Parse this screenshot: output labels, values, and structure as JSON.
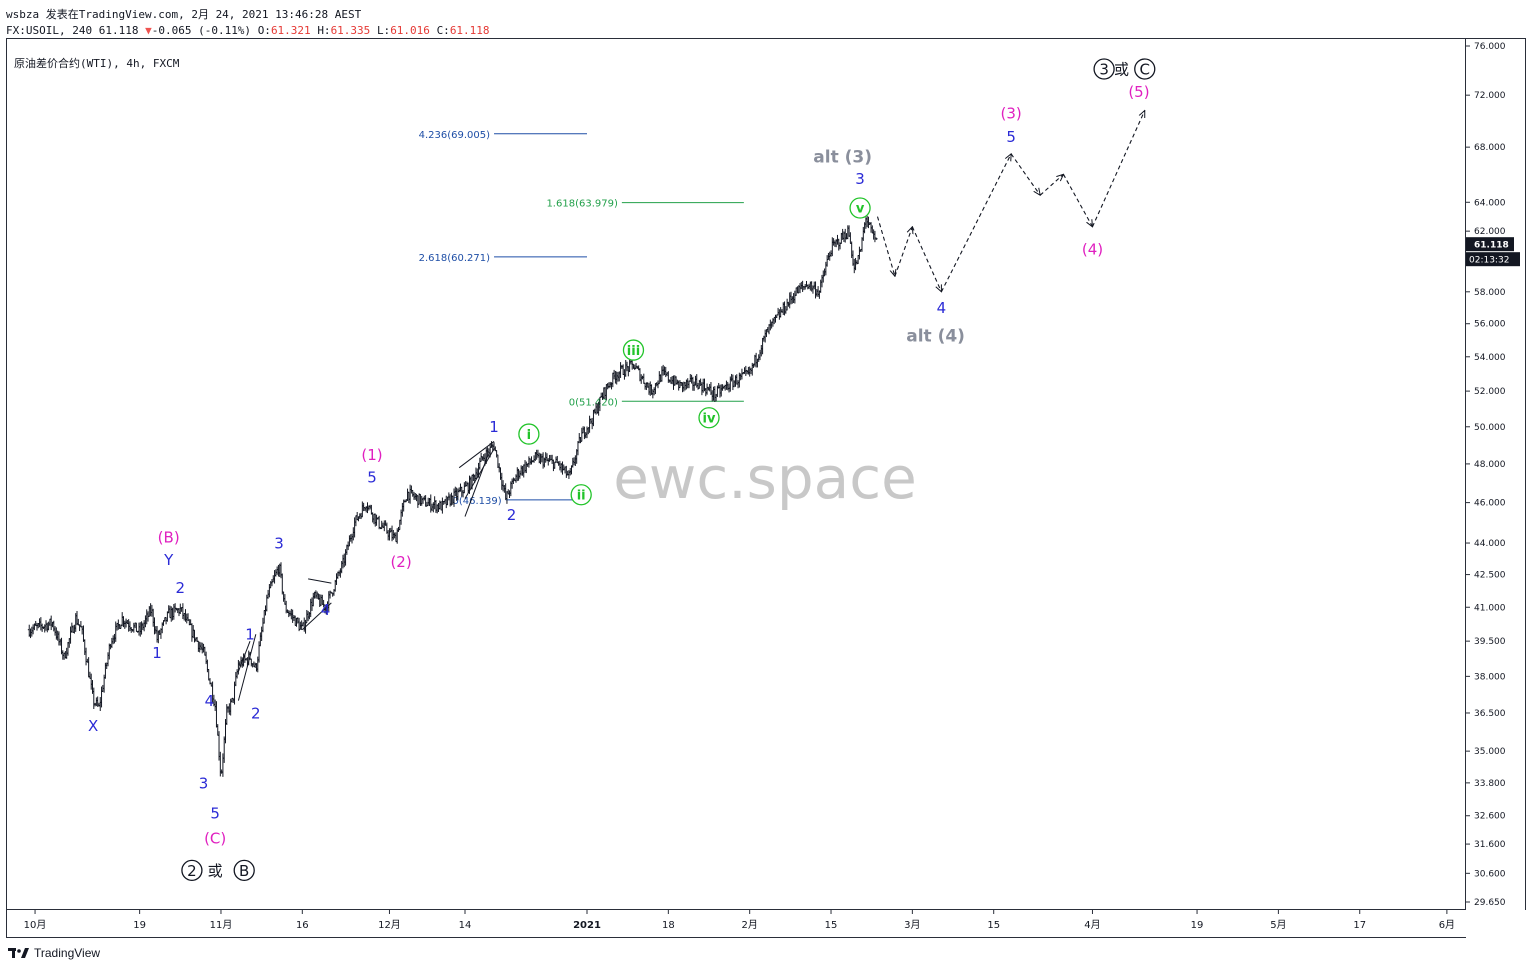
{
  "header": {
    "line1": "wsbza 发表在TradingView.com, 2月 24, 2021 13:46:28 AEST",
    "symbol": "FX:USOIL, 240",
    "last": "61.118",
    "change_arrow": "▼",
    "change": "-0.065 (-0.11%)",
    "o_label": "O:",
    "o_val": "61.321",
    "h_label": "H:",
    "h_val": "61.335",
    "l_label": "L:",
    "l_val": "61.016",
    "c_label": "C:",
    "c_val": "61.118"
  },
  "symbol_title": "原油差价合约(WTI), 4h, FXCM",
  "watermark": "ewc.space",
  "footer": {
    "brand": "TradingView"
  },
  "chart_data": {
    "type": "candlestick",
    "y_scale": "log",
    "ylim": [
      29.0,
      77.0
    ],
    "price_ticks": [
      "76.000",
      "72.000",
      "68.000",
      "64.000",
      "62.000",
      "60.000",
      "58.000",
      "56.000",
      "54.000",
      "52.000",
      "50.000",
      "48.000",
      "46.000",
      "44.000",
      "42.500",
      "41.000",
      "39.500",
      "38.000",
      "36.500",
      "35.000",
      "33.800",
      "32.600",
      "31.600",
      "30.600",
      "29.650"
    ],
    "time_ticks": [
      {
        "label": "10月",
        "date": "2020-10-01",
        "bold": false
      },
      {
        "label": "19",
        "date": "2020-10-19",
        "bold": false
      },
      {
        "label": "11月",
        "date": "2020-11-02",
        "bold": false
      },
      {
        "label": "16",
        "date": "2020-11-16",
        "bold": false
      },
      {
        "label": "12月",
        "date": "2020-12-01",
        "bold": false
      },
      {
        "label": "14",
        "date": "2020-12-14",
        "bold": false
      },
      {
        "label": "2021",
        "date": "2021-01-04",
        "bold": true
      },
      {
        "label": "18",
        "date": "2021-01-18",
        "bold": false
      },
      {
        "label": "2月",
        "date": "2021-02-01",
        "bold": false
      },
      {
        "label": "15",
        "date": "2021-02-15",
        "bold": false
      },
      {
        "label": "3月",
        "date": "2021-03-01",
        "bold": false
      },
      {
        "label": "15",
        "date": "2021-03-15",
        "bold": false
      },
      {
        "label": "4月",
        "date": "2021-04-01",
        "bold": false
      },
      {
        "label": "19",
        "date": "2021-04-19",
        "bold": false
      },
      {
        "label": "5月",
        "date": "2021-05-03",
        "bold": false
      },
      {
        "label": "17",
        "date": "2021-05-17",
        "bold": false
      },
      {
        "label": "6月",
        "date": "2021-06-01",
        "bold": false
      }
    ],
    "last_price": {
      "value": 61.118,
      "label": "61.118",
      "countdown": "02:13:32",
      "color": "#131722"
    },
    "price_path_keypoints": [
      [
        "2020-09-30",
        40.0
      ],
      [
        "2020-10-04",
        40.3
      ],
      [
        "2020-10-06",
        38.8
      ],
      [
        "2020-10-08",
        40.5
      ],
      [
        "2020-10-09",
        40.0
      ],
      [
        "2020-10-11",
        37.0
      ],
      [
        "2020-10-12",
        36.7
      ],
      [
        "2020-10-14",
        39.5
      ],
      [
        "2020-10-16",
        40.5
      ],
      [
        "2020-10-19",
        39.9
      ],
      [
        "2020-10-21",
        40.9
      ],
      [
        "2020-10-22",
        39.6
      ],
      [
        "2020-10-24",
        40.7
      ],
      [
        "2020-10-26",
        40.9
      ],
      [
        "2020-10-28",
        39.9
      ],
      [
        "2020-10-30",
        39.0
      ],
      [
        "2020-11-01",
        36.8
      ],
      [
        "2020-11-02",
        34.0
      ],
      [
        "2020-11-03",
        36.5
      ],
      [
        "2020-11-04",
        37.0
      ],
      [
        "2020-11-05",
        38.5
      ],
      [
        "2020-11-07",
        38.8
      ],
      [
        "2020-11-08",
        38.3
      ],
      [
        "2020-11-10",
        41.5
      ],
      [
        "2020-11-12",
        42.9
      ],
      [
        "2020-11-13",
        41.0
      ],
      [
        "2020-11-16",
        40.0
      ],
      [
        "2020-11-18",
        41.5
      ],
      [
        "2020-11-20",
        41.0
      ],
      [
        "2020-11-23",
        43.0
      ],
      [
        "2020-11-25",
        45.0
      ],
      [
        "2020-11-27",
        46.0
      ],
      [
        "2020-11-29",
        45.0
      ],
      [
        "2020-12-02",
        44.2
      ],
      [
        "2020-12-04",
        46.5
      ],
      [
        "2020-12-07",
        46.0
      ],
      [
        "2020-12-10",
        45.8
      ],
      [
        "2020-12-13",
        46.5
      ],
      [
        "2020-12-15",
        47.0
      ],
      [
        "2020-12-17",
        48.3
      ],
      [
        "2020-12-19",
        49.0
      ],
      [
        "2020-12-21",
        46.2
      ],
      [
        "2020-12-23",
        47.5
      ],
      [
        "2020-12-26",
        48.3
      ],
      [
        "2020-12-30",
        48.0
      ],
      [
        "2021-01-01",
        47.3
      ],
      [
        "2021-01-03",
        49.5
      ],
      [
        "2021-01-05",
        50.5
      ],
      [
        "2021-01-07",
        52.0
      ],
      [
        "2021-01-09",
        53.0
      ],
      [
        "2021-01-12",
        53.5
      ],
      [
        "2021-01-15",
        52.0
      ],
      [
        "2021-01-17",
        53.0
      ],
      [
        "2021-01-20",
        52.3
      ],
      [
        "2021-01-23",
        52.5
      ],
      [
        "2021-01-26",
        51.8
      ],
      [
        "2021-01-29",
        52.5
      ],
      [
        "2021-02-01",
        53.0
      ],
      [
        "2021-02-04",
        55.5
      ],
      [
        "2021-02-07",
        57.0
      ],
      [
        "2021-02-09",
        58.0
      ],
      [
        "2021-02-11",
        58.5
      ],
      [
        "2021-02-13",
        58.0
      ],
      [
        "2021-02-14",
        59.5
      ],
      [
        "2021-02-15",
        60.8
      ],
      [
        "2021-02-18",
        62.0
      ],
      [
        "2021-02-19",
        59.5
      ],
      [
        "2021-02-20",
        60.5
      ],
      [
        "2021-02-21",
        63.0
      ],
      [
        "2021-02-22",
        61.8
      ],
      [
        "2021-02-23",
        61.1
      ]
    ],
    "projection": {
      "style": "dashed-arrows",
      "points": [
        [
          "2021-02-23",
          63.0
        ],
        [
          "2021-02-26",
          59.0
        ],
        [
          "2021-03-01",
          62.3
        ],
        [
          "2021-03-06",
          58.0
        ],
        [
          "2021-03-18",
          67.5
        ],
        [
          "2021-03-23",
          64.5
        ],
        [
          "2021-03-27",
          66.0
        ],
        [
          "2021-04-01",
          62.3
        ],
        [
          "2021-04-10",
          70.8
        ]
      ]
    },
    "fib_levels": [
      {
        "label": "4.236(69.005)",
        "value": 69.005,
        "from": "2020-12-19",
        "to": "2021-01-04",
        "color": "#1e4ea6"
      },
      {
        "label": "1.618(63.979)",
        "value": 63.979,
        "from": "2021-01-10",
        "to": "2021-01-31",
        "color": "#22a04a"
      },
      {
        "label": "2.618(60.271)",
        "value": 60.271,
        "from": "2020-12-19",
        "to": "2021-01-04",
        "color": "#1e4ea6"
      },
      {
        "label": "0(51.420)",
        "value": 51.42,
        "from": "2021-01-10",
        "to": "2021-01-31",
        "color": "#22a04a"
      },
      {
        "label": "0(46.139)",
        "value": 46.139,
        "from": "2020-12-21",
        "to": "2021-01-03",
        "color": "#1e4ea6"
      }
    ],
    "annotations": [
      {
        "text": "X",
        "date": "2020-10-11",
        "price": 36.0,
        "color": "#2b2bd6",
        "style": "plain",
        "size": 15
      },
      {
        "text": "1",
        "date": "2020-10-22",
        "price": 39.0,
        "color": "#2b2bd6",
        "style": "plain",
        "size": 15
      },
      {
        "text": "2",
        "date": "2020-10-26",
        "price": 41.9,
        "color": "#2b2bd6",
        "style": "plain",
        "size": 15
      },
      {
        "text": "Y",
        "date": "2020-10-24",
        "price": 43.2,
        "color": "#2b2bd6",
        "style": "plain",
        "size": 15
      },
      {
        "text": "(B)",
        "date": "2020-10-24",
        "price": 44.3,
        "color": "#e020c0",
        "style": "plain",
        "size": 15
      },
      {
        "text": "4",
        "date": "2020-10-31",
        "price": 37.0,
        "color": "#2b2bd6",
        "style": "plain",
        "size": 15
      },
      {
        "text": "3",
        "date": "2020-10-30",
        "price": 33.8,
        "color": "#2b2bd6",
        "style": "plain",
        "size": 15
      },
      {
        "text": "5",
        "date": "2020-11-01",
        "price": 32.7,
        "color": "#2b2bd6",
        "style": "plain",
        "size": 15
      },
      {
        "text": "(C)",
        "date": "2020-11-01",
        "price": 31.8,
        "color": "#e020c0",
        "style": "plain",
        "size": 15
      },
      {
        "text": "2",
        "date": "2020-10-28",
        "price": 30.7,
        "color": "#131722",
        "style": "circled",
        "size": 15
      },
      {
        "text": "或",
        "date": "2020-11-01",
        "price": 30.7,
        "color": "#131722",
        "style": "plain",
        "size": 15
      },
      {
        "text": "B",
        "date": "2020-11-06",
        "price": 30.7,
        "color": "#131722",
        "style": "circled",
        "size": 15
      },
      {
        "text": "1",
        "date": "2020-11-07",
        "price": 39.8,
        "color": "#2b2bd6",
        "style": "plain",
        "size": 15
      },
      {
        "text": "2",
        "date": "2020-11-08",
        "price": 36.5,
        "color": "#2b2bd6",
        "style": "plain",
        "size": 15
      },
      {
        "text": "3",
        "date": "2020-11-12",
        "price": 44.0,
        "color": "#2b2bd6",
        "style": "plain",
        "size": 15
      },
      {
        "text": "4",
        "date": "2020-11-20",
        "price": 40.9,
        "color": "#2b2bd6",
        "style": "plain",
        "size": 15
      },
      {
        "text": "5",
        "date": "2020-11-28",
        "price": 47.3,
        "color": "#2b2bd6",
        "style": "plain",
        "size": 15
      },
      {
        "text": "(1)",
        "date": "2020-11-28",
        "price": 48.5,
        "color": "#e020c0",
        "style": "plain",
        "size": 15
      },
      {
        "text": "(2)",
        "date": "2020-12-03",
        "price": 43.1,
        "color": "#e020c0",
        "style": "plain",
        "size": 15
      },
      {
        "text": "1",
        "date": "2020-12-19",
        "price": 50.0,
        "color": "#2b2bd6",
        "style": "plain",
        "size": 15
      },
      {
        "text": "2",
        "date": "2020-12-22",
        "price": 45.4,
        "color": "#2b2bd6",
        "style": "plain",
        "size": 15
      },
      {
        "text": "i",
        "date": "2020-12-25",
        "price": 49.6,
        "color": "#22c42a",
        "style": "circled-green",
        "size": 13
      },
      {
        "text": "ii",
        "date": "2021-01-03",
        "price": 46.4,
        "color": "#22c42a",
        "style": "circled-green",
        "size": 13
      },
      {
        "text": "iii",
        "date": "2021-01-12",
        "price": 54.4,
        "color": "#22c42a",
        "style": "circled-green",
        "size": 13
      },
      {
        "text": "iv",
        "date": "2021-01-25",
        "price": 50.5,
        "color": "#22c42a",
        "style": "circled-green",
        "size": 13
      },
      {
        "text": "v",
        "date": "2021-02-20",
        "price": 63.6,
        "color": "#22c42a",
        "style": "circled-green",
        "size": 13
      },
      {
        "text": "3",
        "date": "2021-02-20",
        "price": 65.7,
        "color": "#2b2bd6",
        "style": "plain",
        "size": 15
      },
      {
        "text": "alt (3)",
        "date": "2021-02-17",
        "price": 67.3,
        "color": "#8a8f9c",
        "style": "plain",
        "size": 17
      },
      {
        "text": "4",
        "date": "2021-03-06",
        "price": 57.0,
        "color": "#2b2bd6",
        "style": "plain",
        "size": 15
      },
      {
        "text": "alt (4)",
        "date": "2021-03-05",
        "price": 55.3,
        "color": "#8a8f9c",
        "style": "plain",
        "size": 17
      },
      {
        "text": "(3)",
        "date": "2021-03-18",
        "price": 70.6,
        "color": "#e020c0",
        "style": "plain",
        "size": 15
      },
      {
        "text": "5",
        "date": "2021-03-18",
        "price": 68.8,
        "color": "#2b2bd6",
        "style": "plain",
        "size": 15
      },
      {
        "text": "(4)",
        "date": "2021-04-01",
        "price": 60.8,
        "color": "#e020c0",
        "style": "plain",
        "size": 15
      },
      {
        "text": "(5)",
        "date": "2021-04-09",
        "price": 72.3,
        "color": "#e020c0",
        "style": "plain",
        "size": 15
      },
      {
        "text": "3",
        "date": "2021-04-03",
        "price": 74.1,
        "color": "#131722",
        "style": "circled",
        "size": 15
      },
      {
        "text": "或",
        "date": "2021-04-06",
        "price": 74.1,
        "color": "#131722",
        "style": "plain",
        "size": 15
      },
      {
        "text": "C",
        "date": "2021-04-10",
        "price": 74.1,
        "color": "#131722",
        "style": "circled",
        "size": 15
      }
    ],
    "trendlines": [
      {
        "from": [
          "2020-11-05",
          37.0
        ],
        "to": [
          "2020-11-08",
          39.8
        ]
      },
      {
        "from": [
          "2020-11-05",
          38.2
        ],
        "to": [
          "2020-11-07",
          39.5
        ]
      },
      {
        "from": [
          "2020-11-16",
          40.0
        ],
        "to": [
          "2020-11-21",
          41.2
        ]
      },
      {
        "from": [
          "2020-11-17",
          42.3
        ],
        "to": [
          "2020-11-21",
          42.1
        ]
      },
      {
        "from": [
          "2020-12-13",
          47.8
        ],
        "to": [
          "2020-12-19",
          49.2
        ]
      },
      {
        "from": [
          "2020-12-14",
          46.2
        ],
        "to": [
          "2020-12-19",
          48.8
        ]
      },
      {
        "from": [
          "2020-12-14",
          45.3
        ],
        "to": [
          "2020-12-18",
          48.5
        ]
      }
    ]
  }
}
